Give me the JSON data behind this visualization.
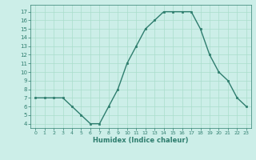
{
  "x": [
    0,
    1,
    2,
    3,
    4,
    5,
    6,
    7,
    8,
    9,
    10,
    11,
    12,
    13,
    14,
    15,
    16,
    17,
    18,
    19,
    20,
    21,
    22,
    23
  ],
  "y": [
    7,
    7,
    7,
    7,
    6,
    5,
    4,
    4,
    6,
    8,
    11,
    13,
    15,
    16,
    17,
    17,
    17,
    17,
    15,
    12,
    10,
    9,
    7,
    6
  ],
  "line_color": "#2e7d6e",
  "marker": "s",
  "marker_size": 2,
  "bg_color": "#cceee8",
  "grid_color": "#aaddcc",
  "xlabel": "Humidex (Indice chaleur)",
  "ylim": [
    3.5,
    17.8
  ],
  "yticks": [
    4,
    5,
    6,
    7,
    8,
    9,
    10,
    11,
    12,
    13,
    14,
    15,
    16,
    17
  ],
  "xticks": [
    0,
    1,
    2,
    3,
    4,
    5,
    6,
    7,
    8,
    9,
    10,
    11,
    12,
    13,
    14,
    15,
    16,
    17,
    18,
    19,
    20,
    21,
    22,
    23
  ],
  "xlim": [
    -0.5,
    23.5
  ]
}
